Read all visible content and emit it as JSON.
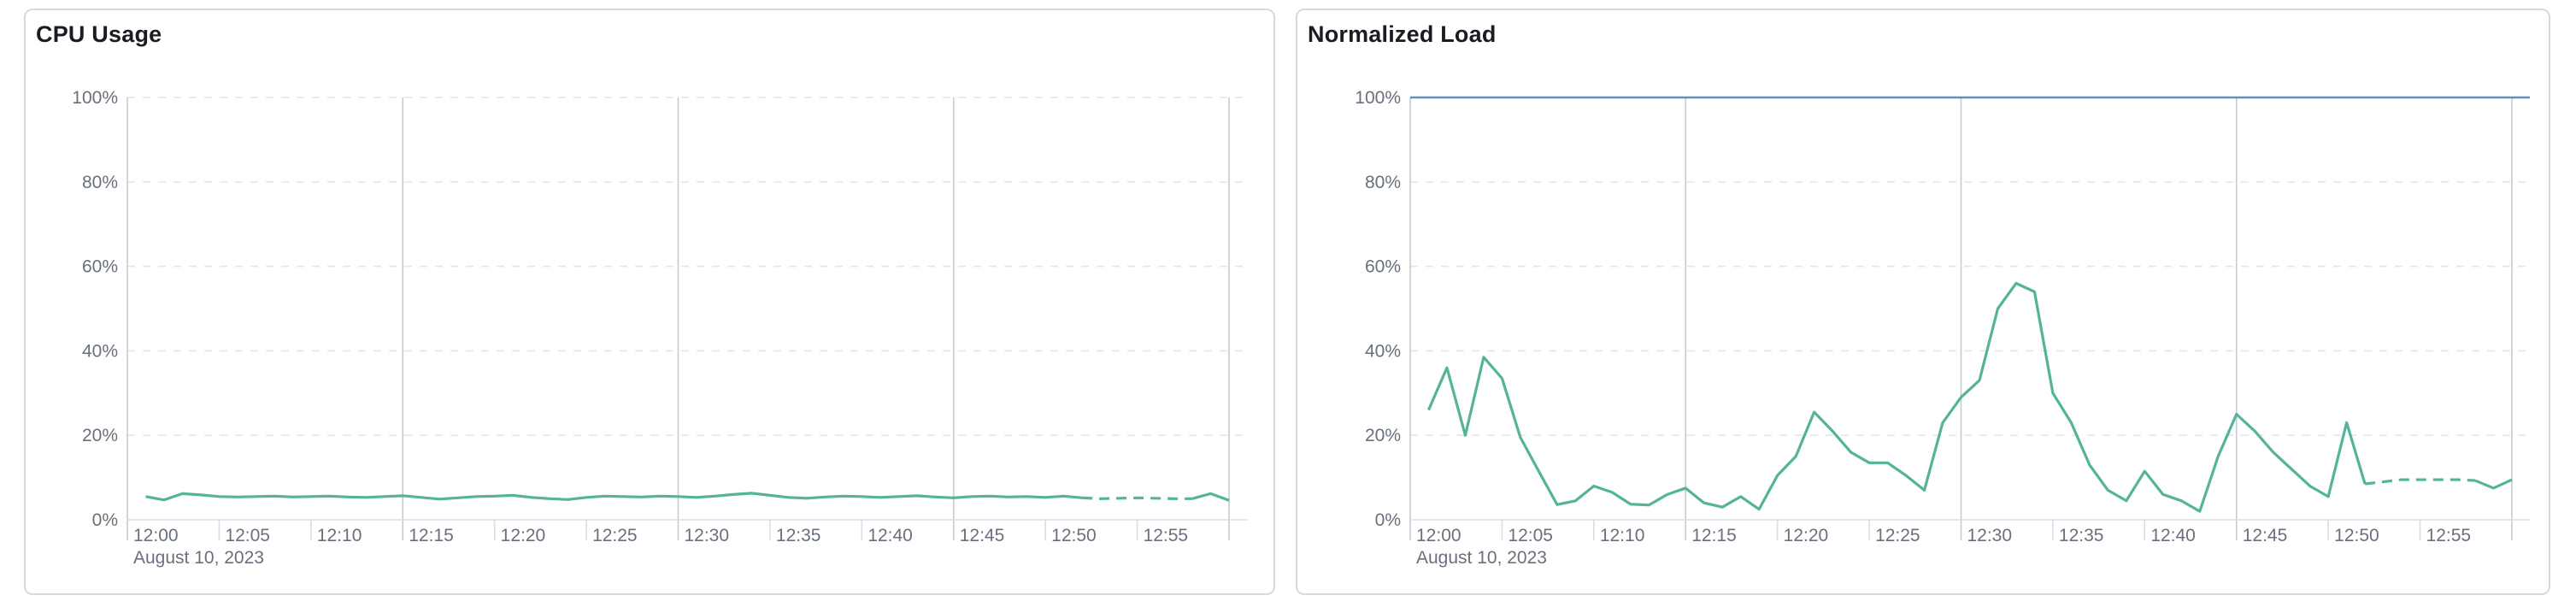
{
  "colors": {
    "background": "#ffffff",
    "card_border": "#d3dae6",
    "title_text": "#1a1c21",
    "tick_label_text": "#69707d",
    "grid_dashed": "#e1e5ee",
    "grid_strong": "#c6cad2",
    "axis_line": "#d9dde4",
    "series_green": "#54b399",
    "series_blue": "#6092c0"
  },
  "chart_data": [
    {
      "type": "line",
      "title": "CPU Usage",
      "xlabel": "",
      "ylabel": "",
      "x_range": [
        "12:00",
        "13:00"
      ],
      "x_tick_labels": [
        "12:00",
        "12:05",
        "12:10",
        "12:15",
        "12:20",
        "12:25",
        "12:30",
        "12:35",
        "12:40",
        "12:45",
        "12:50",
        "12:55"
      ],
      "x_date_label": "August 10, 2023",
      "y_tick_labels": [
        "0%",
        "20%",
        "40%",
        "60%",
        "80%",
        "100%"
      ],
      "ylim": [
        0,
        100
      ],
      "grid": true,
      "legend": "none",
      "series": [
        {
          "name": "cpu-usage-percent",
          "color": "#54b399",
          "start_minute": 1,
          "step_minutes": 1,
          "dashed_from_minute": 52,
          "dashed_to_minute": 58,
          "values": [
            5.5,
            4.7,
            6.2,
            5.9,
            5.5,
            5.4,
            5.5,
            5.6,
            5.4,
            5.5,
            5.6,
            5.4,
            5.3,
            5.5,
            5.7,
            5.3,
            4.9,
            5.2,
            5.5,
            5.6,
            5.8,
            5.3,
            5.0,
            4.8,
            5.3,
            5.6,
            5.5,
            5.4,
            5.6,
            5.5,
            5.3,
            5.6,
            6.0,
            6.3,
            5.8,
            5.3,
            5.1,
            5.4,
            5.6,
            5.5,
            5.3,
            5.5,
            5.7,
            5.4,
            5.2,
            5.5,
            5.6,
            5.4,
            5.5,
            5.3,
            5.6,
            5.2,
            5.0,
            5.1,
            5.2,
            5.1,
            5.0,
            5.0,
            6.2,
            4.6
          ]
        }
      ]
    },
    {
      "type": "line",
      "title": "Normalized Load",
      "xlabel": "",
      "ylabel": "",
      "x_range": [
        "12:00",
        "13:00"
      ],
      "x_tick_labels": [
        "12:00",
        "12:05",
        "12:10",
        "12:15",
        "12:20",
        "12:25",
        "12:30",
        "12:35",
        "12:40",
        "12:45",
        "12:50",
        "12:55"
      ],
      "x_date_label": "August 10, 2023",
      "y_tick_labels": [
        "0%",
        "20%",
        "40%",
        "60%",
        "80%",
        "100%"
      ],
      "ylim": [
        0,
        100
      ],
      "grid": true,
      "legend": "none",
      "series": [
        {
          "name": "normalized-load-percent",
          "color": "#54b399",
          "start_minute": 1,
          "step_minutes": 1,
          "dashed_from_minute": 52,
          "dashed_to_minute": 58,
          "values": [
            26,
            36,
            20,
            38.5,
            33.5,
            19.5,
            11.5,
            3.6,
            4.5,
            8,
            6.5,
            3.7,
            3.5,
            6,
            7.5,
            4,
            3,
            5.5,
            2.5,
            10.5,
            15,
            25.5,
            21,
            16,
            13.5,
            13.5,
            10.5,
            7,
            23,
            29,
            33,
            50,
            56,
            54,
            30,
            23,
            13,
            7,
            4.5,
            11.5,
            6,
            4.5,
            2,
            15,
            25,
            21,
            16,
            12,
            8,
            5.5,
            23,
            8.5,
            9,
            9.5,
            9.5,
            9.5,
            9.5,
            9.3,
            7.5,
            9.5
          ]
        },
        {
          "name": "reference-line-100-percent",
          "type": "reference-line",
          "color": "#6092c0",
          "value": 100
        }
      ]
    }
  ]
}
